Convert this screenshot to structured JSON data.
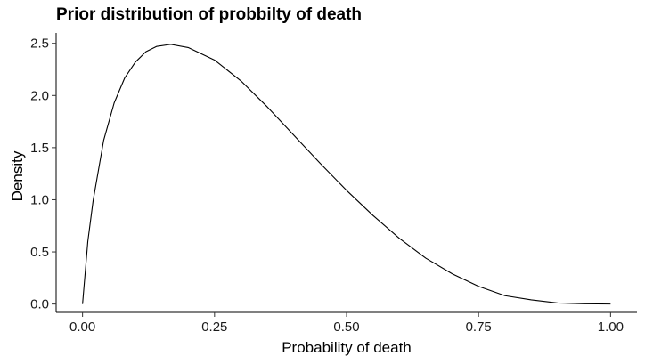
{
  "chart_data": {
    "type": "line",
    "title": "Prior distribution of probbilty of death",
    "xlabel": "Probability of death",
    "ylabel": "Density",
    "xlim": [
      -0.05,
      1.05
    ],
    "ylim": [
      -0.08,
      2.6
    ],
    "x_ticks": [
      0,
      0.25,
      0.5,
      0.75,
      1
    ],
    "x_tick_labels": [
      "0.00",
      "0.25",
      "0.50",
      "0.75",
      "1.00"
    ],
    "y_ticks": [
      0,
      0.5,
      1,
      1.5,
      2,
      2.5
    ],
    "y_tick_labels": [
      "0.0",
      "0.5",
      "1.0",
      "1.5",
      "2.0",
      "2.5"
    ],
    "grid": false,
    "line_color": "#000000",
    "series": [
      {
        "x": [
          0,
          0.01,
          0.02,
          0.04,
          0.06,
          0.08,
          0.1,
          0.12,
          0.14,
          0.167,
          0.2,
          0.25,
          0.3,
          0.35,
          0.4,
          0.45,
          0.5,
          0.55,
          0.6,
          0.65,
          0.7,
          0.75,
          0.8,
          0.85,
          0.9,
          0.95,
          1
        ],
        "values": [
          0,
          0.6,
          0.99,
          1.57,
          1.93,
          2.17,
          2.32,
          2.42,
          2.47,
          2.49,
          2.46,
          2.34,
          2.14,
          1.89,
          1.62,
          1.35,
          1.09,
          0.85,
          0.63,
          0.44,
          0.29,
          0.17,
          0.08,
          0.04,
          0.01,
          0.003,
          0
        ]
      }
    ]
  }
}
